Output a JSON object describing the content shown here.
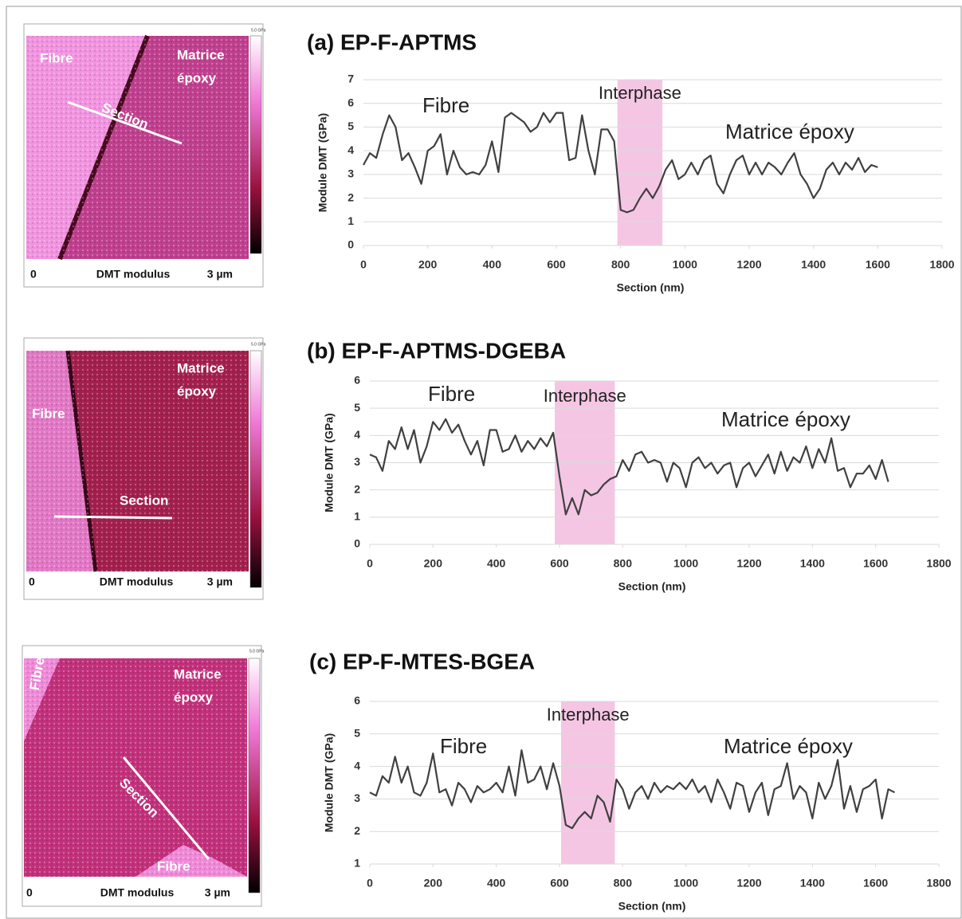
{
  "chart_data": [
    {
      "type": "line",
      "title": "(a) EP-F-APTMS",
      "x_label": "Section (nm)",
      "y_label": "Module DMT (GPa)",
      "xlim": [
        0,
        1800
      ],
      "xticks": [
        0,
        200,
        400,
        600,
        800,
        1000,
        1200,
        1400,
        1600,
        1800
      ],
      "ylim": [
        0,
        7
      ],
      "yticks": [
        0,
        1,
        2,
        3,
        4,
        5,
        6,
        7
      ],
      "grid": true,
      "band": {
        "from": 790,
        "to": 930,
        "label": "Interphase",
        "color": "#f5c6e4"
      },
      "annotations": [
        "Fibre",
        "Matrice époxy"
      ],
      "series": [
        {
          "color": "#404040",
          "x": [
            0,
            20,
            40,
            60,
            80,
            100,
            120,
            140,
            160,
            180,
            200,
            220,
            240,
            260,
            280,
            300,
            320,
            340,
            360,
            380,
            400,
            420,
            440,
            460,
            480,
            500,
            520,
            540,
            560,
            580,
            600,
            620,
            640,
            660,
            680,
            700,
            720,
            740,
            760,
            780,
            800,
            820,
            840,
            860,
            880,
            900,
            920,
            940,
            960,
            980,
            1000,
            1020,
            1040,
            1060,
            1080,
            1100,
            1120,
            1140,
            1160,
            1180,
            1200,
            1220,
            1240,
            1260,
            1280,
            1300,
            1320,
            1340,
            1360,
            1380,
            1400,
            1420,
            1440,
            1460,
            1480,
            1500,
            1520,
            1540,
            1560,
            1580,
            1600
          ],
          "values": [
            3.4,
            3.9,
            3.7,
            4.7,
            5.5,
            5.0,
            3.6,
            3.9,
            3.3,
            2.6,
            4.0,
            4.2,
            4.7,
            3.0,
            4.0,
            3.3,
            3.0,
            3.1,
            3.0,
            3.4,
            4.4,
            3.1,
            5.4,
            5.6,
            5.4,
            5.2,
            4.8,
            5.0,
            5.6,
            5.2,
            5.6,
            5.6,
            3.6,
            3.7,
            5.5,
            4.0,
            3.0,
            4.9,
            4.9,
            4.4,
            1.5,
            1.4,
            1.5,
            2.0,
            2.4,
            2.0,
            2.5,
            3.2,
            3.6,
            2.8,
            3.0,
            3.5,
            3.0,
            3.6,
            3.8,
            2.6,
            2.2,
            3.0,
            3.6,
            3.8,
            3.0,
            3.5,
            3.0,
            3.5,
            3.3,
            3.0,
            3.5,
            3.9,
            3.0,
            2.6,
            2.0,
            2.4,
            3.2,
            3.5,
            3.0,
            3.5,
            3.2,
            3.7,
            3.1,
            3.4,
            3.3
          ]
        }
      ]
    },
    {
      "type": "line",
      "title": "(b) EP-F-APTMS-DGEBA",
      "x_label": "Section (nm)",
      "y_label": "Module DMT (GPa)",
      "xlim": [
        0,
        1800
      ],
      "xticks": [
        0,
        200,
        400,
        600,
        800,
        1000,
        1200,
        1400,
        1600,
        1800
      ],
      "ylim": [
        0,
        6
      ],
      "yticks": [
        0,
        1,
        2,
        3,
        4,
        5,
        6
      ],
      "grid": true,
      "band": {
        "from": 585,
        "to": 775,
        "label": "Interphase",
        "color": "#f5c6e4"
      },
      "annotations": [
        "Fibre",
        "Matrice époxy"
      ],
      "series": [
        {
          "color": "#404040",
          "x": [
            0,
            20,
            40,
            60,
            80,
            100,
            120,
            140,
            160,
            180,
            200,
            220,
            240,
            260,
            280,
            300,
            320,
            340,
            360,
            380,
            400,
            420,
            440,
            460,
            480,
            500,
            520,
            540,
            560,
            580,
            600,
            620,
            640,
            660,
            680,
            700,
            720,
            740,
            760,
            780,
            800,
            820,
            840,
            860,
            880,
            900,
            920,
            940,
            960,
            980,
            1000,
            1020,
            1040,
            1060,
            1080,
            1100,
            1120,
            1140,
            1160,
            1180,
            1200,
            1220,
            1240,
            1260,
            1280,
            1300,
            1320,
            1340,
            1360,
            1380,
            1400,
            1420,
            1440,
            1460,
            1480,
            1500,
            1520,
            1540,
            1560,
            1580,
            1600,
            1620,
            1640
          ],
          "values": [
            3.3,
            3.2,
            2.7,
            3.8,
            3.5,
            4.3,
            3.5,
            4.2,
            3.0,
            3.6,
            4.5,
            4.2,
            4.6,
            4.1,
            4.4,
            3.8,
            3.3,
            3.8,
            2.9,
            4.2,
            4.2,
            3.4,
            3.5,
            4.0,
            3.4,
            3.8,
            3.5,
            3.9,
            3.6,
            4.1,
            2.5,
            1.1,
            1.7,
            1.1,
            2.0,
            1.8,
            1.9,
            2.2,
            2.4,
            2.5,
            3.1,
            2.7,
            3.3,
            3.4,
            3.0,
            3.1,
            3.0,
            2.3,
            3.0,
            2.8,
            2.1,
            3.0,
            3.2,
            2.8,
            3.0,
            2.6,
            2.9,
            3.0,
            2.1,
            2.8,
            3.0,
            2.5,
            2.9,
            3.3,
            2.6,
            3.4,
            2.7,
            3.2,
            3.0,
            3.6,
            2.8,
            3.5,
            3.0,
            3.9,
            2.7,
            2.8,
            2.1,
            2.6,
            2.6,
            2.9,
            2.4,
            3.1,
            2.3
          ]
        }
      ]
    },
    {
      "type": "line",
      "title": "(c) EP-F-MTES-BGEA",
      "x_label": "Section (nm)",
      "y_label": "Module DMT (GPa)",
      "xlim": [
        0,
        1800
      ],
      "xticks": [
        0,
        200,
        400,
        600,
        800,
        1000,
        1200,
        1400,
        1600,
        1800
      ],
      "ylim": [
        1,
        6
      ],
      "yticks": [
        1,
        2,
        3,
        4,
        5,
        6
      ],
      "grid": true,
      "band": {
        "from": 605,
        "to": 775,
        "label": "Interphase",
        "color": "#f5c6e4"
      },
      "annotations": [
        "Fibre",
        "Matrice époxy"
      ],
      "series": [
        {
          "color": "#404040",
          "x": [
            0,
            20,
            40,
            60,
            80,
            100,
            120,
            140,
            160,
            180,
            200,
            220,
            240,
            260,
            280,
            300,
            320,
            340,
            360,
            380,
            400,
            420,
            440,
            460,
            480,
            500,
            520,
            540,
            560,
            580,
            600,
            620,
            640,
            660,
            680,
            700,
            720,
            740,
            760,
            780,
            800,
            820,
            840,
            860,
            880,
            900,
            920,
            940,
            960,
            980,
            1000,
            1020,
            1040,
            1060,
            1080,
            1100,
            1120,
            1140,
            1160,
            1180,
            1200,
            1220,
            1240,
            1260,
            1280,
            1300,
            1320,
            1340,
            1360,
            1380,
            1400,
            1420,
            1440,
            1460,
            1480,
            1500,
            1520,
            1540,
            1560,
            1580,
            1600,
            1620,
            1640,
            1660
          ],
          "values": [
            3.2,
            3.1,
            3.7,
            3.5,
            4.3,
            3.5,
            4.0,
            3.2,
            3.1,
            3.5,
            4.4,
            3.2,
            3.3,
            2.8,
            3.5,
            3.3,
            2.9,
            3.4,
            3.2,
            3.3,
            3.5,
            3.2,
            4.0,
            3.1,
            4.5,
            3.5,
            3.6,
            4.0,
            3.3,
            4.1,
            3.4,
            2.2,
            2.1,
            2.4,
            2.6,
            2.4,
            3.1,
            2.9,
            2.3,
            3.6,
            3.3,
            2.7,
            3.2,
            3.4,
            3.0,
            3.5,
            3.2,
            3.4,
            3.3,
            3.5,
            3.3,
            3.6,
            3.2,
            3.4,
            2.9,
            3.6,
            3.2,
            2.7,
            3.5,
            3.4,
            2.6,
            3.2,
            3.5,
            2.5,
            3.3,
            3.4,
            4.1,
            3.0,
            3.4,
            3.2,
            2.4,
            3.5,
            3.0,
            3.4,
            4.2,
            2.7,
            3.4,
            2.6,
            3.3,
            3.4,
            3.6,
            2.4,
            3.3,
            3.2
          ]
        }
      ]
    }
  ],
  "images": [
    {
      "labels": [
        "Fibre",
        "Matrice",
        "époxy",
        "Section"
      ],
      "axis_start": "0",
      "caption": "DMT modulus",
      "axis_end": "3 µm",
      "colorbar_max": "5.0 GPa"
    },
    {
      "labels": [
        "Matrice",
        "époxy",
        "Fibre",
        "Section"
      ],
      "axis_start": "0",
      "caption": "DMT modulus",
      "axis_end": "3 µm",
      "colorbar_max": "5.0 GPa"
    },
    {
      "labels": [
        "Fibre",
        "Matrice",
        "époxy",
        "Section",
        "Fibre"
      ],
      "axis_start": "0",
      "caption": "DMT modulus",
      "axis_end": "3 µm",
      "colorbar_max": "5.0 GPa"
    }
  ]
}
